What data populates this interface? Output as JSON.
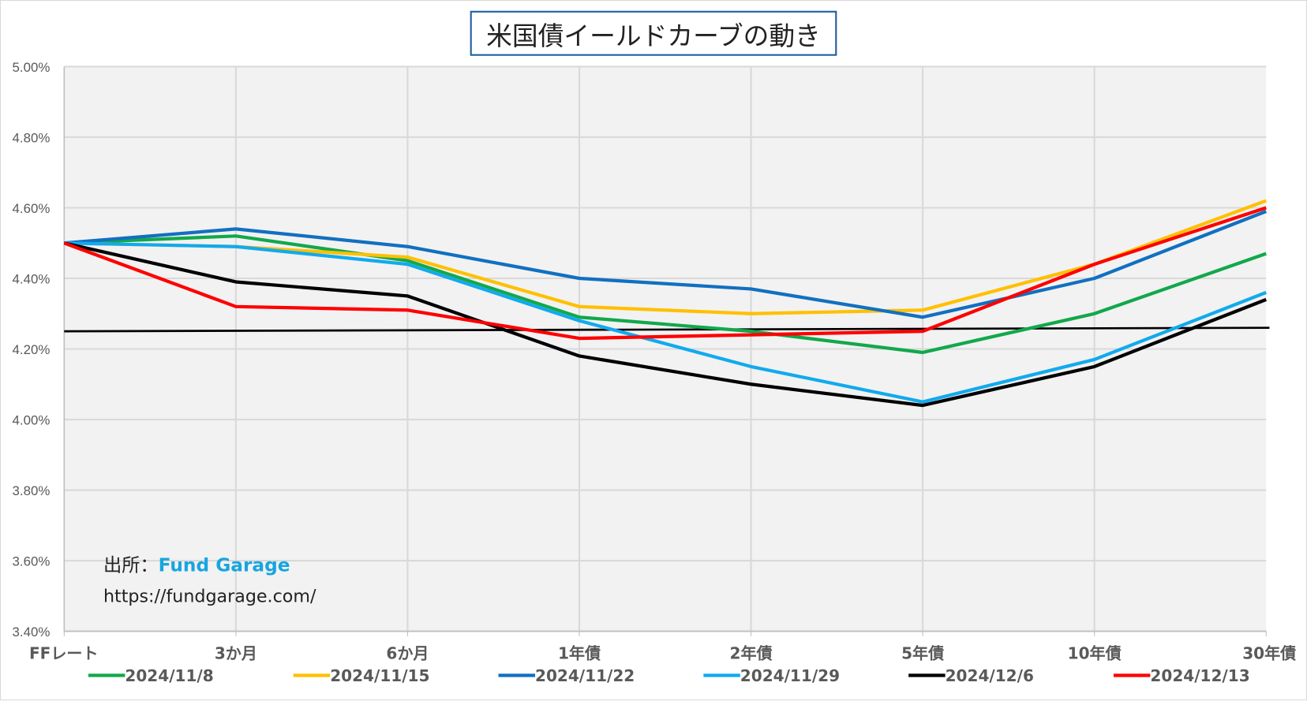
{
  "chart_data": {
    "type": "line",
    "title": "米国債イールドカーブの動き",
    "categories": [
      "FFレート",
      "3か月",
      "6か月",
      "1年債",
      "2年債",
      "5年債",
      "10年債",
      "30年債"
    ],
    "ylim": [
      3.4,
      5.0
    ],
    "yticks": [
      "3.40%",
      "3.60%",
      "3.80%",
      "4.00%",
      "4.20%",
      "4.40%",
      "4.60%",
      "4.80%",
      "5.00%"
    ],
    "grid": true,
    "legend": "bottom",
    "series": [
      {
        "name": "2024/11/8",
        "color": "#12a84b",
        "values": [
          4.5,
          4.52,
          4.45,
          4.29,
          4.25,
          4.19,
          4.3,
          4.47
        ]
      },
      {
        "name": "2024/11/15",
        "color": "#ffc000",
        "values": [
          4.5,
          4.49,
          4.46,
          4.32,
          4.3,
          4.31,
          4.44,
          4.62
        ]
      },
      {
        "name": "2024/11/22",
        "color": "#1170c0",
        "values": [
          4.5,
          4.54,
          4.49,
          4.4,
          4.37,
          4.29,
          4.4,
          4.59
        ]
      },
      {
        "name": "2024/11/29",
        "color": "#11aaee",
        "values": [
          4.5,
          4.49,
          4.44,
          4.28,
          4.15,
          4.05,
          4.17,
          4.36
        ]
      },
      {
        "name": "2024/12/6",
        "color": "#000000",
        "values": [
          4.5,
          4.39,
          4.35,
          4.18,
          4.1,
          4.04,
          4.15,
          4.34
        ]
      },
      {
        "name": "2024/12/13",
        "color": "#ff0000",
        "values": [
          4.5,
          4.32,
          4.31,
          4.23,
          4.24,
          4.25,
          4.44,
          4.6
        ]
      }
    ],
    "reference_line": {
      "color": "#000000",
      "values": [
        4.25,
        4.26
      ]
    }
  },
  "source": {
    "label": "出所：",
    "name": "Fund Garage",
    "url": "https://fundgarage.com/"
  }
}
